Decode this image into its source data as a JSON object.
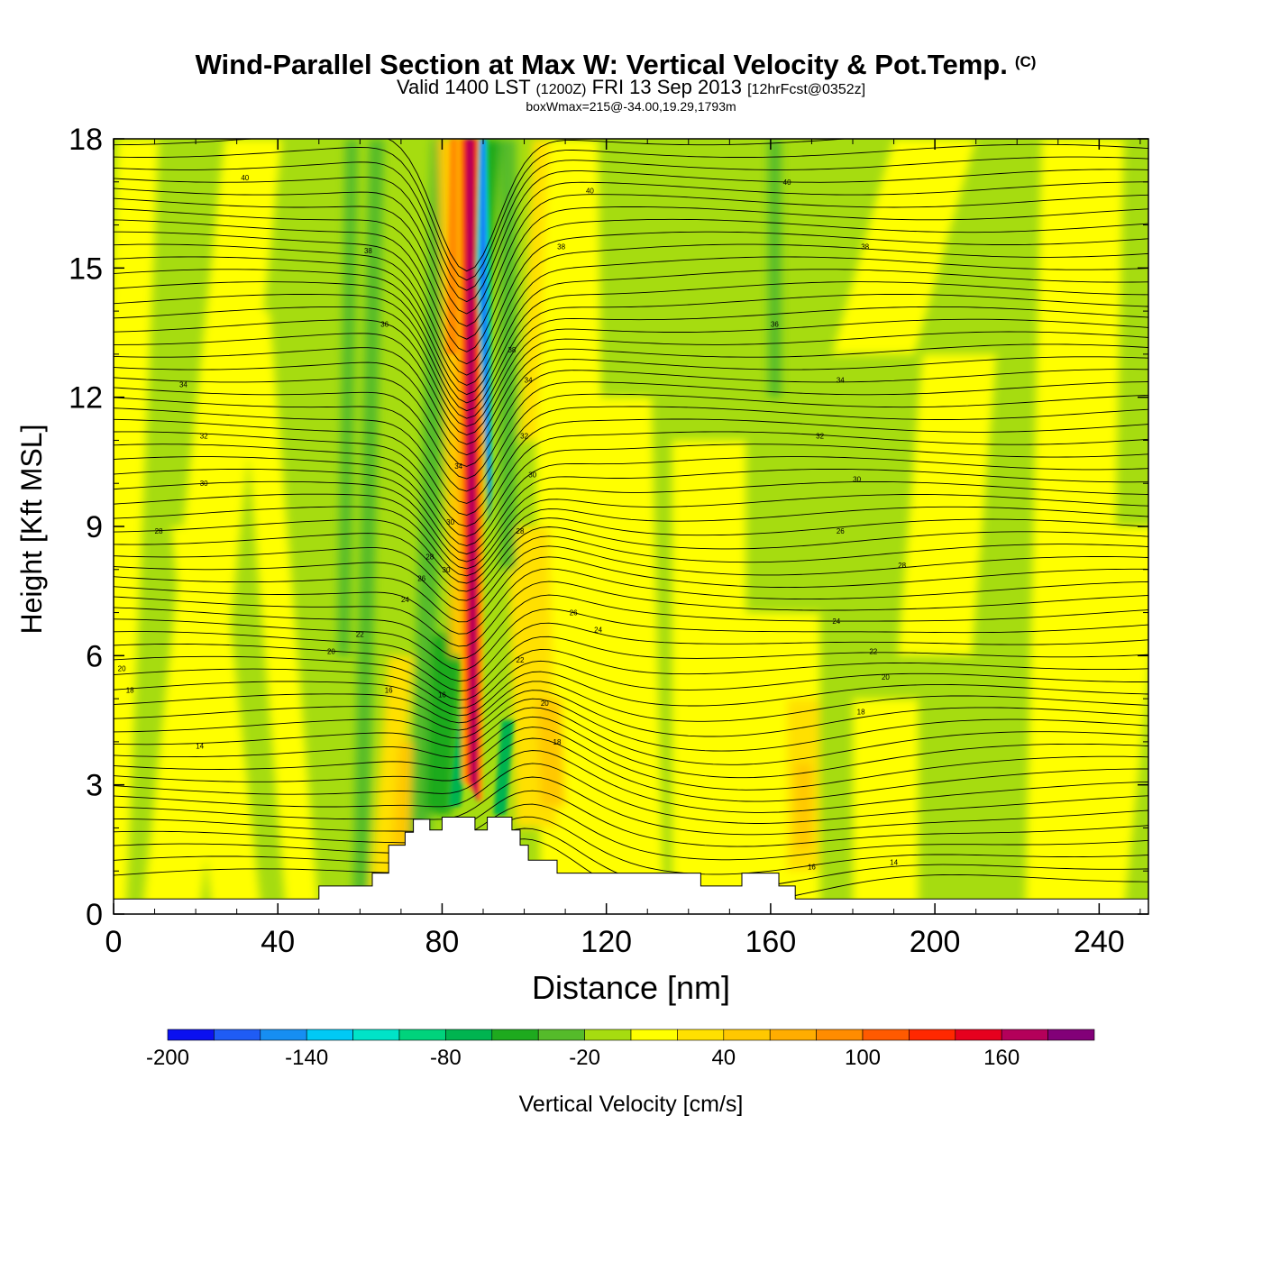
{
  "chart_data": {
    "type": "heatmap",
    "title": "Wind-Parallel Section at Max W: Vertical Velocity & Pot.Temp.",
    "title_mark": "(C)",
    "subtitle": {
      "valid_prefix": "Valid 1400 LST",
      "utc": "(1200Z)",
      "date": "FRI 13 Sep 2013",
      "forecast": "[12hrFcst@0352z]"
    },
    "box_info": "boxWmax=215@-34.00,19.29,1793m",
    "xlabel": "Distance [nm]",
    "ylabel": "Height [Kft MSL]",
    "xlim": [
      0,
      252
    ],
    "ylim": [
      0,
      18
    ],
    "xticks": [
      0,
      40,
      80,
      120,
      160,
      200,
      240
    ],
    "xtick_labels": [
      "0",
      "40",
      "80",
      "120",
      "160",
      "200",
      "240"
    ],
    "yticks": [
      0,
      3,
      6,
      9,
      12,
      15,
      18
    ],
    "ytick_labels": [
      "0",
      "3",
      "6",
      "9",
      "12",
      "15",
      "18"
    ],
    "background_w": -10,
    "updraft_core": {
      "x": 88,
      "y_bottom": 2.3,
      "y_top": 18,
      "max_w": 160
    },
    "downdraft_core": {
      "x": 90,
      "y_bottom": 9,
      "y_top": 18,
      "min_w": -180
    },
    "terrain": [
      [
        0,
        0.35
      ],
      [
        50,
        0.35
      ],
      [
        50,
        0.65
      ],
      [
        63,
        0.65
      ],
      [
        63,
        0.95
      ],
      [
        67,
        0.95
      ],
      [
        67,
        1.6
      ],
      [
        71,
        1.6
      ],
      [
        71,
        1.9
      ],
      [
        73,
        1.9
      ],
      [
        73,
        2.2
      ],
      [
        77,
        2.2
      ],
      [
        77,
        1.95
      ],
      [
        80,
        1.95
      ],
      [
        80,
        2.25
      ],
      [
        88,
        2.25
      ],
      [
        88,
        1.95
      ],
      [
        91,
        1.95
      ],
      [
        91,
        2.25
      ],
      [
        97,
        2.25
      ],
      [
        97,
        1.95
      ],
      [
        99,
        1.95
      ],
      [
        99,
        1.6
      ],
      [
        101,
        1.6
      ],
      [
        101,
        1.25
      ],
      [
        108,
        1.25
      ],
      [
        108,
        0.95
      ],
      [
        143,
        0.95
      ],
      [
        143,
        0.65
      ],
      [
        153,
        0.65
      ],
      [
        153,
        0.95
      ],
      [
        162,
        0.95
      ],
      [
        162,
        0.65
      ],
      [
        166,
        0.65
      ],
      [
        166,
        0.35
      ],
      [
        252,
        0.35
      ]
    ],
    "contour_labels": [
      {
        "x": 32,
        "y": 17.1,
        "text": "40"
      },
      {
        "x": 62,
        "y": 15.4,
        "text": "38"
      },
      {
        "x": 66,
        "y": 13.7,
        "text": "36"
      },
      {
        "x": 17,
        "y": 12.3,
        "text": "34"
      },
      {
        "x": 22,
        "y": 11.1,
        "text": "32"
      },
      {
        "x": 22,
        "y": 10.0,
        "text": "30"
      },
      {
        "x": 11,
        "y": 8.9,
        "text": "28"
      },
      {
        "x": 60,
        "y": 6.5,
        "text": "22"
      },
      {
        "x": 53,
        "y": 6.1,
        "text": "20"
      },
      {
        "x": 67,
        "y": 5.2,
        "text": "16"
      },
      {
        "x": 2,
        "y": 5.7,
        "text": "20"
      },
      {
        "x": 4,
        "y": 5.2,
        "text": "18"
      },
      {
        "x": 21,
        "y": 3.9,
        "text": "14"
      },
      {
        "x": 71,
        "y": 7.3,
        "text": "24"
      },
      {
        "x": 75,
        "y": 7.8,
        "text": "26"
      },
      {
        "x": 77,
        "y": 8.3,
        "text": "28"
      },
      {
        "x": 82,
        "y": 9.1,
        "text": "30"
      },
      {
        "x": 81,
        "y": 8.0,
        "text": "30"
      },
      {
        "x": 84,
        "y": 10.4,
        "text": "34"
      },
      {
        "x": 80,
        "y": 5.1,
        "text": "16"
      },
      {
        "x": 109,
        "y": 15.5,
        "text": "38"
      },
      {
        "x": 97,
        "y": 13.1,
        "text": "38"
      },
      {
        "x": 101,
        "y": 12.4,
        "text": "34"
      },
      {
        "x": 100,
        "y": 11.1,
        "text": "32"
      },
      {
        "x": 102,
        "y": 10.2,
        "text": "30"
      },
      {
        "x": 99,
        "y": 8.9,
        "text": "28"
      },
      {
        "x": 112,
        "y": 7.0,
        "text": "26"
      },
      {
        "x": 118,
        "y": 6.6,
        "text": "24"
      },
      {
        "x": 99,
        "y": 5.9,
        "text": "22"
      },
      {
        "x": 105,
        "y": 4.9,
        "text": "20"
      },
      {
        "x": 108,
        "y": 4.0,
        "text": "18"
      },
      {
        "x": 116,
        "y": 16.8,
        "text": "40"
      },
      {
        "x": 164,
        "y": 17.0,
        "text": "40"
      },
      {
        "x": 183,
        "y": 15.5,
        "text": "38"
      },
      {
        "x": 161,
        "y": 13.7,
        "text": "36"
      },
      {
        "x": 177,
        "y": 12.4,
        "text": "34"
      },
      {
        "x": 172,
        "y": 11.1,
        "text": "32"
      },
      {
        "x": 181,
        "y": 10.1,
        "text": "30"
      },
      {
        "x": 177,
        "y": 8.9,
        "text": "26"
      },
      {
        "x": 192,
        "y": 8.1,
        "text": "28"
      },
      {
        "x": 176,
        "y": 6.8,
        "text": "24"
      },
      {
        "x": 185,
        "y": 6.1,
        "text": "22"
      },
      {
        "x": 188,
        "y": 5.5,
        "text": "20"
      },
      {
        "x": 182,
        "y": 4.7,
        "text": "18"
      },
      {
        "x": 170,
        "y": 1.1,
        "text": "16"
      },
      {
        "x": 190,
        "y": 1.2,
        "text": "14"
      }
    ],
    "colorbar": {
      "label": "Vertical Velocity [cm/s]",
      "boundaries": [
        -200,
        -180,
        -160,
        -140,
        -120,
        -100,
        -80,
        -60,
        -40,
        -20,
        0,
        20,
        40,
        60,
        80,
        100,
        120,
        140,
        160,
        180,
        200
      ],
      "colors": [
        "#0a10f0",
        "#1f5cf5",
        "#168ef2",
        "#00c9f5",
        "#00e3c8",
        "#00d37c",
        "#00b450",
        "#1eaa1e",
        "#55bb2a",
        "#a6dc10",
        "#ffff00",
        "#ffe000",
        "#ffc800",
        "#ffad00",
        "#ff8c00",
        "#ff5a00",
        "#ff2800",
        "#e6001e",
        "#b4005a",
        "#820078"
      ],
      "tick_labels": [
        "-200",
        "-140",
        "-80",
        "-20",
        "40",
        "100",
        "160"
      ],
      "tick_values": [
        -200,
        -140,
        -80,
        -20,
        40,
        100,
        160
      ]
    }
  }
}
